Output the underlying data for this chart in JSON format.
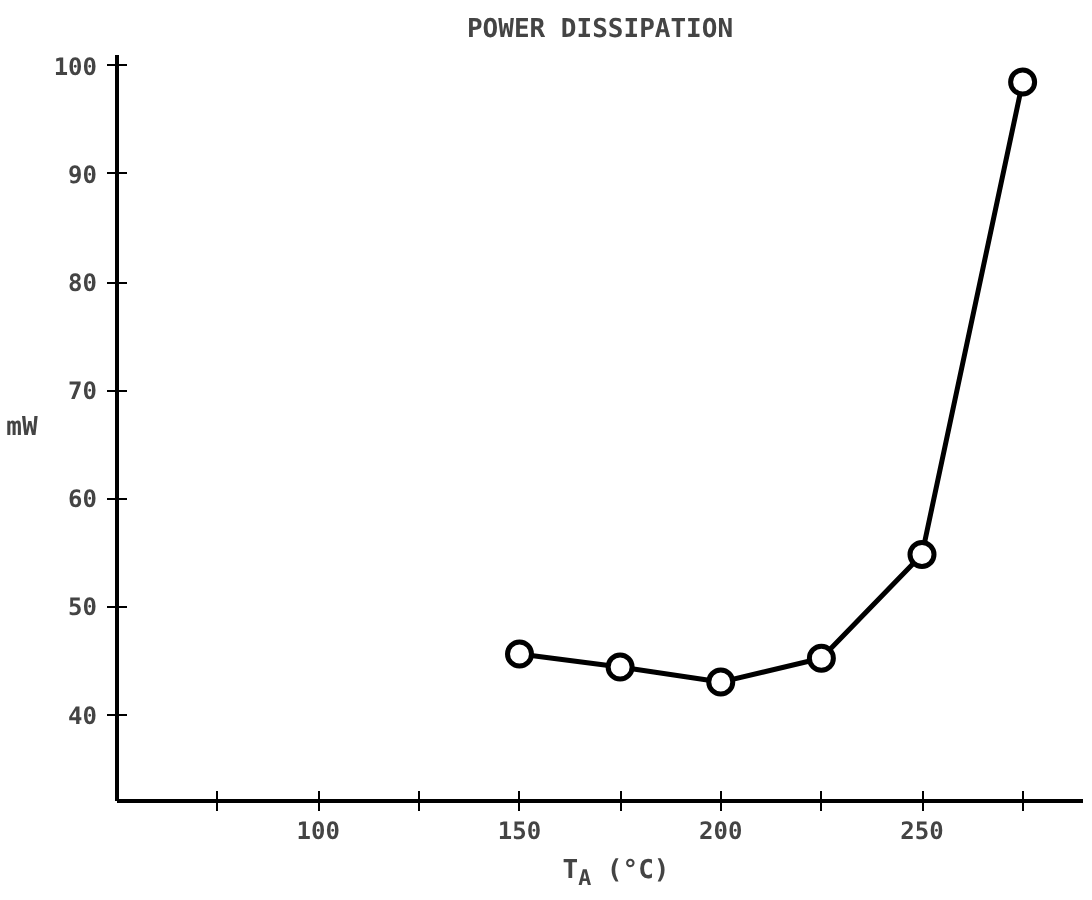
{
  "chart_data": {
    "type": "line",
    "title": "POWER DISSIPATION",
    "xlabel": "T$_{A}$ (°C)",
    "ylabel": "mW",
    "x": [
      150,
      175,
      200,
      225,
      250,
      275
    ],
    "series": [
      {
        "color": "#000000",
        "values": [
          45.6,
          44.4,
          43.0,
          45.2,
          54.8,
          98.5
        ]
      }
    ],
    "xlim": [
      50,
      290
    ],
    "ylim": [
      32,
      101
    ],
    "xticks": [
      {
        "value": 75,
        "label": null
      },
      100,
      {
        "value": 125,
        "label": null
      },
      150,
      {
        "value": 175,
        "label": null
      },
      200,
      {
        "value": 225,
        "label": null
      },
      250,
      {
        "value": 275,
        "label": null
      }
    ],
    "yticks": [
      40,
      50,
      60,
      70,
      80,
      90,
      100
    ],
    "grid": false,
    "marker": "circle",
    "line_style": "solid"
  }
}
